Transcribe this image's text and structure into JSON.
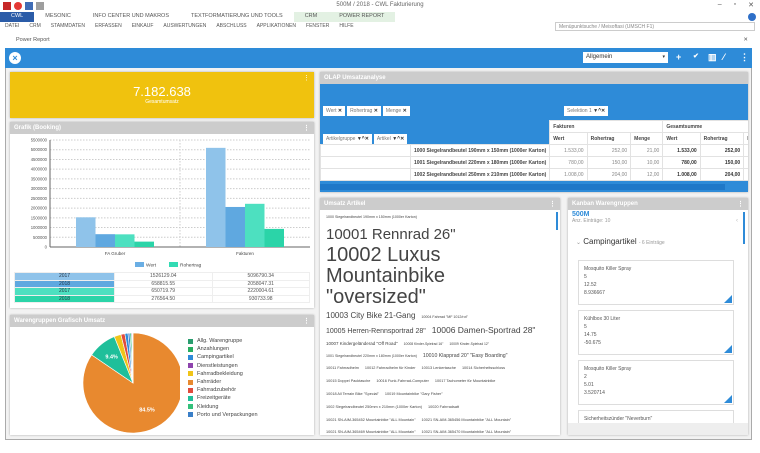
{
  "window": {
    "title": "500M / 2018 - CWL Fakturierung",
    "minimize": "–",
    "restore": "▫",
    "close": "✕"
  },
  "ribbon_tabs": [
    "CWL",
    "MESONIC",
    "INFO CENTER UND MAKROS",
    "TEXTFORMATIERUNG UND TOOLS",
    "CRM",
    "POWER REPORT"
  ],
  "menu": [
    "DATEI",
    "CRM",
    "STAMMDATEN",
    "ERFASSEN",
    "EINKAUF",
    "AUSWERTUNGEN",
    "ABSCHLUSS",
    "APPLIKATIONEN",
    "FENSTER",
    "HILFE"
  ],
  "search": {
    "placeholder": "Menüpunktsuche / Meisoftasi (UMSCH F1)"
  },
  "subwindow": {
    "title": "Power Report",
    "close": "✕"
  },
  "toolbar": {
    "select_value": "Allgemein",
    "add": "+",
    "check": "✔",
    "more": "⋮"
  },
  "kpi": {
    "value": "7.182.638",
    "label": "Gesamtumsatz"
  },
  "grafik": {
    "title": "Grafik (Booking)",
    "kebab": "⋮",
    "table": [
      {
        "label": "2017",
        "v1": "1526129.04",
        "v2": "5096790.34",
        "color": "#8fc3ea"
      },
      {
        "label": "2018",
        "v1": "658815.55",
        "v2": "2058047.31",
        "color": "#5fa8e0"
      },
      {
        "label": "2017",
        "v1": "650719.79",
        "v2": "2220004.61",
        "color": "#4de0c0"
      },
      {
        "label": "2018",
        "v1": "276564.50",
        "v2": "930733.98",
        "color": "#2bd4a8"
      }
    ]
  },
  "chart_data": [
    {
      "type": "bar",
      "categories": [
        "FA Gruber",
        "Fakturen"
      ],
      "ylim": [
        0,
        5500000
      ],
      "yticks": [
        0,
        500000,
        1000000,
        1500000,
        2000000,
        2500000,
        3000000,
        3500000,
        4000000,
        4500000,
        5000000,
        5500000
      ],
      "grid": true,
      "legend": "bottom",
      "legend_entries": [
        {
          "name": "Wert",
          "color": "#6aaee4"
        },
        {
          "name": "Rohertrag",
          "color": "#33dbb4"
        }
      ],
      "series": [
        {
          "group": "Wert",
          "year": "2017",
          "values": [
            1526129.04,
            5096790.34
          ],
          "color": "#8fc3ea"
        },
        {
          "group": "Wert",
          "year": "2018",
          "values": [
            658815.55,
            2058047.31
          ],
          "color": "#5fa8e0"
        },
        {
          "group": "Rohertrag",
          "year": "2017",
          "values": [
            650719.79,
            2220004.61
          ],
          "color": "#4de0c0"
        },
        {
          "group": "Rohertrag",
          "year": "2018",
          "values": [
            276564.5,
            930733.98
          ],
          "color": "#2bd4a8"
        }
      ]
    },
    {
      "type": "pie",
      "title": "Warengruppen Grafisch Umsatz",
      "legend": "right",
      "slices": [
        {
          "name": "Fahrräder",
          "value": 84.5,
          "label": "84.5%",
          "color": "#e8892f"
        },
        {
          "name": "Freizeitgeräte",
          "value": 9.4,
          "label": "9.4%",
          "color": "#1fbf9a"
        },
        {
          "name": "Fahrradbekleidung",
          "value": 2.2,
          "color": "#f0c419"
        },
        {
          "name": "Fahrradzubehör",
          "value": 1.3,
          "color": "#e04b3c"
        },
        {
          "name": "Campingartikel",
          "value": 1.0,
          "color": "#2e8bd8"
        },
        {
          "name": "Porto und Verpackungen",
          "value": 0.6,
          "color": "#3a7fc8"
        },
        {
          "name": "Kleidung",
          "value": 0.5,
          "color": "#33c07a"
        },
        {
          "name": "Dienstleistungen",
          "value": 0.3,
          "color": "#8e44ad"
        },
        {
          "name": "Anzahlungen",
          "value": 0.1,
          "color": "#27ae60"
        },
        {
          "name": "Allg. Warengruppe",
          "value": 0.1,
          "color": "#2a9d6f"
        }
      ],
      "legend_order": [
        "Allg. Warengruppe",
        "Anzahlungen",
        "Campingartikel",
        "Dienstleistungen",
        "Fahrradbekleidung",
        "Fahrräder",
        "Fahrradzubehör",
        "Freizeitgeräte",
        "Kleidung",
        "Porto und Verpackungen"
      ]
    }
  ],
  "pie_panel": {
    "title": "Warengruppen Grafisch Umsatz"
  },
  "olap": {
    "title": "OLAP Umsatzanalyse",
    "filters": [
      "Wert",
      "Rohertrag",
      "Menge"
    ],
    "row_fields": [
      "Artikelgruppe",
      "Artikel"
    ],
    "col_field": "Selektion 1",
    "groups": [
      "Fakturen",
      "Gesamtsumme"
    ],
    "cols": [
      "Wert",
      "Rohertrag",
      "Menge",
      "Wert",
      "Rohertrag",
      "M"
    ],
    "rows": [
      {
        "name": "1000 Siegelrandbeutel 190mm x 150mm (1000er Karton)",
        "vals": [
          "1.533,00",
          "252,00",
          "21,00",
          "1.533,00",
          "252,00"
        ]
      },
      {
        "name": "1001 Siegelrandbeutel 220mm x 180mm (1000er Karton)",
        "vals": [
          "780,00",
          "150,00",
          "10,00",
          "780,00",
          "150,00"
        ]
      },
      {
        "name": "1002 Siegelrandbeutel 250mm x 210mm (1000er Karton)",
        "vals": [
          "1.008,00",
          "204,00",
          "12,00",
          "1.008,00",
          "204,00"
        ]
      }
    ]
  },
  "umsatz": {
    "title": "Umsatz Artikel",
    "words": [
      "1000 Siegelrandbeutel 190mm x 150mm (1000er Karton)",
      "10001 Rennrad 26\"",
      "10002 Luxus Mountainbike \"oversized\"",
      "10003 City Bike 21-Gang",
      "10004 Fahrrad \"MF 1012/rot\"",
      "10005 Herren-Rennsportrad 28\"",
      "10006 Damen-Sportrad 28\"",
      "10007 Kindergeländerad \"Off Road\"",
      "10008 Kinder-Spielrad 16\"",
      "10009 Kinder-Spielrad 12\"",
      "1001 Siegelrandbeutel 220mm x 180mm (1000er Karton)",
      "10010 Klapprad 20\" \"Easy Boarding\"",
      "10011 Fahrradhelm",
      "10012 Fahrradhelm für Kinder",
      "10013 Lenkertasche",
      "10014 Sicherheitsschloss",
      "10015 Doppel Packtasche",
      "10016 Funk-Fahrrad-Computer",
      "10017 Tachometer für Mountainbike",
      "10018 All Terrain Bike \"Special\"",
      "10019 Mountainbike \"Gary Fisher\"",
      "1002 Siegelrandbeutel 250mm x 210mm (1000er Karton)",
      "10020 Fahrradsatt",
      "10021 SN-AIM-365452 Mountainbike \"ALL Mountain\"",
      "10021 SN-AIM-365456 Mountainbike \"ALL Mountain\"",
      "10021 SN-AIM-365469 Mountainbike \"ALL Mountain\"",
      "10021 SN-AIM-365470 Mountainbike \"ALL Mountain\"",
      "10021 SN-AIM-365471 Mountainbike \"ALL Mountain\"",
      "10021 SN-AIM-365472 Mountainbike \"ALL Mountain\""
    ]
  },
  "kanban": {
    "title": "Kanban Warengruppen",
    "client": "500M",
    "count": "Anz. Einträge: 10",
    "group": "Campingartikel",
    "group_count": "- 6 Einträge",
    "cards": [
      {
        "lines": [
          "Mosquito Killer Spray",
          "5",
          "12.52",
          "8.936667"
        ]
      },
      {
        "lines": [
          "Kühlbox 30 Liter",
          "5",
          "14.75",
          "-50.675"
        ]
      },
      {
        "lines": [
          "Mosquito Killer Spray",
          "2",
          "5.01",
          "3.520714"
        ]
      },
      {
        "lines": [
          "Sicherheitszünder \"Neverburn\""
        ]
      }
    ]
  }
}
